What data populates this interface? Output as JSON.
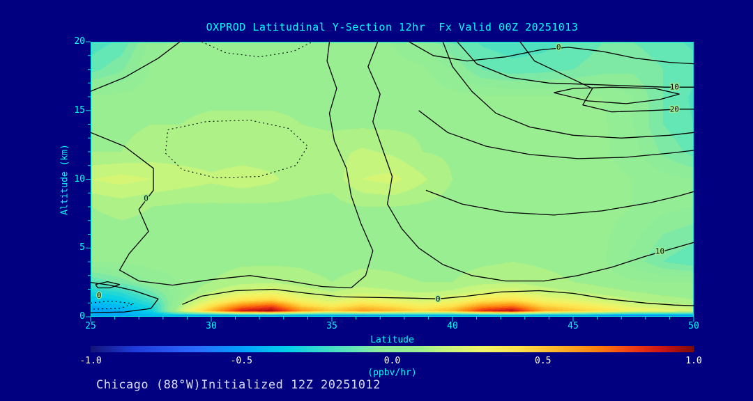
{
  "footer": {
    "text": "Chicago (88°W)Initialized 12Z 20251012"
  },
  "colors": {
    "background": "#000080",
    "axis_text": "#00FFFF",
    "frame": "#00E0E0",
    "contour": "#000000",
    "contour_halo": "#9AEC92",
    "colorbar_tick_text": "#FFFFFF",
    "footer_text": "#DCDCF5"
  },
  "chart_data": {
    "type": "heatmap",
    "title": "OXPROD Latitudinal Y-Section 12hr  Fx Valid 00Z 20251013",
    "xlabel": "Latitude",
    "ylabel": "Altitude (km)",
    "units": "ppbv/hr",
    "units_label": "(ppbv/hr)",
    "x_range": [
      25,
      50
    ],
    "y_range": [
      0,
      20
    ],
    "x_ticks": [
      25,
      30,
      35,
      40,
      45,
      50
    ],
    "y_ticks": [
      0,
      5,
      10,
      15,
      20
    ],
    "x_minor_step": 1,
    "y_minor_step": 1,
    "colorbar_ticks": [
      "-1.0",
      "-0.5",
      "0.0",
      "0.5",
      "1.0"
    ],
    "colorbar_range": [
      -1,
      1
    ],
    "quantize_step": 0.05,
    "colormap": [
      [
        -1.0,
        "#141478"
      ],
      [
        -0.85,
        "#1E3CDC"
      ],
      [
        -0.65,
        "#2B6BFF"
      ],
      [
        -0.5,
        "#00A0FF"
      ],
      [
        -0.35,
        "#00CFE8"
      ],
      [
        -0.22,
        "#3CDCC8"
      ],
      [
        -0.12,
        "#66E6B4"
      ],
      [
        -0.05,
        "#8CEB9B"
      ],
      [
        0.08,
        "#98EE90"
      ],
      [
        0.18,
        "#C8F57D"
      ],
      [
        0.3,
        "#F0F566"
      ],
      [
        0.42,
        "#FFE14B"
      ],
      [
        0.55,
        "#FFB428"
      ],
      [
        0.68,
        "#FF7F0E"
      ],
      [
        0.8,
        "#F03C14"
      ],
      [
        0.9,
        "#C81414"
      ],
      [
        1.0,
        "#7D0A0A"
      ]
    ],
    "x": [
      25,
      26.25,
      27.5,
      28.75,
      30,
      31.25,
      32.5,
      33.75,
      35,
      36.25,
      37.5,
      38.75,
      40,
      41.25,
      42.5,
      43.75,
      45,
      46.25,
      47.5,
      48.75,
      50
    ],
    "y": [
      0,
      0.4,
      0.8,
      1.2,
      1.8,
      2.5,
      4,
      6,
      8,
      10,
      12,
      14,
      16,
      18,
      20
    ],
    "values": [
      [
        -0.5,
        -0.48,
        -0.45,
        -0.55,
        -0.7,
        -0.75,
        -0.75,
        -0.7,
        -0.7,
        -0.75,
        -0.7,
        -0.65,
        -0.7,
        -0.75,
        -0.75,
        -0.7,
        -0.65,
        -0.7,
        -0.75,
        -0.7,
        -0.65
      ],
      [
        -0.5,
        -0.45,
        -0.33,
        0.2,
        0.55,
        0.9,
        0.97,
        0.65,
        0.5,
        0.62,
        0.55,
        0.45,
        0.55,
        0.85,
        0.95,
        0.6,
        0.5,
        0.42,
        0.32,
        0.28,
        0.22
      ],
      [
        -0.45,
        -0.4,
        -0.28,
        0.12,
        0.4,
        0.65,
        0.75,
        0.45,
        0.35,
        0.46,
        0.4,
        0.32,
        0.4,
        0.6,
        0.66,
        0.45,
        0.38,
        0.3,
        0.22,
        0.18,
        0.15
      ],
      [
        -0.4,
        -0.34,
        -0.2,
        0.08,
        0.25,
        0.4,
        0.46,
        0.3,
        0.22,
        0.3,
        0.26,
        0.22,
        0.26,
        0.38,
        0.42,
        0.3,
        0.25,
        0.2,
        0.15,
        0.12,
        0.1
      ],
      [
        -0.3,
        -0.24,
        -0.1,
        0.05,
        0.15,
        0.22,
        0.26,
        0.18,
        0.15,
        0.18,
        0.16,
        0.14,
        0.16,
        0.22,
        0.24,
        0.18,
        0.15,
        0.12,
        0.1,
        0.08,
        0.08
      ],
      [
        -0.15,
        -0.08,
        0.0,
        0.06,
        0.1,
        0.13,
        0.14,
        0.12,
        0.1,
        0.12,
        0.11,
        0.1,
        0.1,
        0.13,
        0.14,
        0.12,
        0.1,
        0.08,
        0.06,
        0.05,
        0.05
      ],
      [
        0.05,
        0.06,
        0.08,
        0.08,
        0.08,
        0.09,
        0.09,
        0.09,
        0.08,
        0.09,
        0.09,
        0.08,
        0.08,
        0.09,
        0.1,
        0.09,
        0.08,
        0.06,
        -0.02,
        -0.1,
        -0.14
      ],
      [
        0.07,
        0.08,
        0.08,
        0.08,
        0.08,
        0.08,
        0.09,
        0.09,
        0.08,
        0.08,
        0.09,
        0.08,
        0.08,
        0.08,
        0.09,
        0.08,
        0.08,
        0.06,
        0.02,
        -0.05,
        -0.08
      ],
      [
        0.1,
        0.12,
        0.1,
        0.09,
        0.09,
        0.09,
        0.09,
        0.09,
        0.08,
        0.1,
        0.1,
        0.09,
        0.08,
        0.08,
        0.08,
        0.08,
        0.08,
        0.07,
        0.05,
        0.02,
        0.0
      ],
      [
        0.2,
        0.22,
        0.2,
        0.18,
        0.16,
        0.18,
        0.16,
        0.12,
        0.12,
        0.2,
        0.22,
        0.16,
        0.1,
        0.09,
        0.09,
        0.08,
        0.08,
        0.07,
        0.05,
        0.02,
        0.0
      ],
      [
        0.1,
        0.1,
        0.12,
        0.12,
        0.12,
        0.12,
        0.12,
        0.13,
        0.13,
        0.16,
        0.14,
        0.1,
        0.09,
        0.09,
        0.09,
        0.09,
        0.08,
        0.06,
        0.02,
        -0.06,
        -0.12
      ],
      [
        0.08,
        0.09,
        0.1,
        0.1,
        0.12,
        0.12,
        0.12,
        0.1,
        0.09,
        0.09,
        0.09,
        0.09,
        0.09,
        0.09,
        0.08,
        0.08,
        0.07,
        0.06,
        0.0,
        -0.1,
        -0.15
      ],
      [
        0.06,
        0.07,
        0.08,
        0.08,
        0.08,
        0.08,
        0.08,
        0.08,
        0.08,
        0.08,
        0.08,
        0.08,
        0.07,
        0.06,
        0.06,
        0.06,
        0.06,
        0.05,
        0.0,
        -0.1,
        -0.16
      ],
      [
        -0.12,
        -0.06,
        0.06,
        0.08,
        0.08,
        0.08,
        0.08,
        0.08,
        0.08,
        0.08,
        0.07,
        0.06,
        0.0,
        -0.1,
        -0.13,
        -0.12,
        -0.1,
        -0.07,
        -0.06,
        -0.1,
        -0.13
      ],
      [
        -0.18,
        -0.14,
        0.02,
        0.07,
        0.08,
        0.08,
        0.08,
        0.08,
        0.08,
        0.07,
        0.05,
        0.0,
        -0.1,
        -0.16,
        -0.18,
        -0.17,
        -0.14,
        -0.1,
        -0.1,
        -0.13,
        -0.16
      ]
    ],
    "contours": [
      {
        "pts": [
          [
            28.7,
            20
          ],
          [
            27.8,
            18.8
          ],
          [
            26.4,
            17.4
          ],
          [
            25,
            16.4
          ]
        ]
      },
      {
        "pts": [
          [
            25,
            13.4
          ],
          [
            26.4,
            12.4
          ],
          [
            27.6,
            10.8
          ],
          [
            27.6,
            9.2
          ],
          [
            27.0,
            7.8
          ],
          [
            27.4,
            6.2
          ],
          [
            26.6,
            4.6
          ],
          [
            26.2,
            3.4
          ],
          [
            27.0,
            2.6
          ],
          [
            28.4,
            2.3
          ],
          [
            30.0,
            2.7
          ],
          [
            31.6,
            3.0
          ],
          [
            33.2,
            2.6
          ],
          [
            34.6,
            2.2
          ],
          [
            35.8,
            2.1
          ],
          [
            36.4,
            3.0
          ],
          [
            36.7,
            4.8
          ],
          [
            36.2,
            6.8
          ],
          [
            35.8,
            8.8
          ],
          [
            35.6,
            10.8
          ],
          [
            35.1,
            12.8
          ],
          [
            34.9,
            14.8
          ],
          [
            35.2,
            16.6
          ],
          [
            34.8,
            18.6
          ],
          [
            34.9,
            20
          ]
        ],
        "label": "0",
        "label_at": [
          27.3,
          8.6
        ]
      },
      {
        "pts": [
          [
            28.8,
            0.9
          ],
          [
            29.6,
            1.5
          ],
          [
            31,
            1.9
          ],
          [
            32.6,
            2.0
          ],
          [
            34,
            1.7
          ],
          [
            35.4,
            1.45
          ],
          [
            37,
            1.4
          ],
          [
            38.4,
            1.35
          ],
          [
            39.4,
            1.3
          ],
          [
            40.6,
            1.5
          ],
          [
            42,
            1.8
          ],
          [
            43.6,
            1.9
          ],
          [
            45,
            1.7
          ],
          [
            46.4,
            1.3
          ],
          [
            48,
            1.0
          ],
          [
            49.2,
            0.85
          ],
          [
            50,
            0.8
          ]
        ],
        "label": "0",
        "label_at": [
          39.4,
          1.3
        ]
      },
      {
        "pts": [
          [
            25,
            2.5
          ],
          [
            25.8,
            2.3
          ],
          [
            26.8,
            1.9
          ],
          [
            27.8,
            1.3
          ],
          [
            27.5,
            0.6
          ],
          [
            26.4,
            0.35
          ],
          [
            25,
            0.3
          ]
        ],
        "label": "0",
        "label_at": [
          25.35,
          1.55
        ]
      },
      {
        "pts": [
          [
            36.9,
            20
          ],
          [
            36.5,
            18.2
          ],
          [
            37.0,
            16.2
          ],
          [
            36.7,
            14.2
          ],
          [
            37.1,
            12.2
          ],
          [
            37.5,
            10.2
          ],
          [
            37.3,
            8.2
          ],
          [
            37.9,
            6.4
          ],
          [
            38.6,
            5.0
          ],
          [
            39.6,
            3.8
          ],
          [
            40.8,
            3.0
          ],
          [
            42.2,
            2.6
          ],
          [
            43.8,
            2.6
          ],
          [
            45.2,
            3.0
          ],
          [
            46.6,
            3.6
          ],
          [
            48.0,
            4.4
          ],
          [
            49.2,
            5.0
          ],
          [
            50,
            5.4
          ]
        ],
        "label": "10",
        "label_at": [
          48.6,
          4.75
        ]
      },
      {
        "pts": [
          [
            38.2,
            20
          ],
          [
            39.2,
            19.0
          ],
          [
            40.6,
            18.6
          ],
          [
            42.2,
            18.9
          ],
          [
            43.6,
            19.4
          ],
          [
            44.8,
            19.6
          ],
          [
            46.2,
            19.3
          ],
          [
            47.6,
            18.8
          ],
          [
            49,
            18.5
          ],
          [
            50,
            18.4
          ]
        ],
        "label": "0",
        "label_at": [
          44.4,
          19.6
        ]
      },
      {
        "pts": [
          [
            40.2,
            20
          ],
          [
            41.0,
            18.4
          ],
          [
            42.4,
            17.4
          ],
          [
            44,
            17.0
          ],
          [
            45.6,
            16.9
          ],
          [
            47.2,
            16.8
          ],
          [
            48.8,
            16.7
          ],
          [
            50,
            16.7
          ]
        ],
        "label": "10",
        "label_at": [
          49.2,
          16.7
        ]
      },
      {
        "pts": [
          [
            42.8,
            20
          ],
          [
            43.4,
            18.6
          ],
          [
            44.6,
            17.6
          ],
          [
            45.8,
            16.6
          ],
          [
            45.4,
            15.4
          ],
          [
            46.6,
            14.9
          ],
          [
            48.2,
            15.0
          ],
          [
            49.4,
            15.1
          ],
          [
            50,
            15.1
          ]
        ],
        "label": "20",
        "label_at": [
          49.2,
          15.1
        ]
      },
      {
        "pts": [
          [
            44.2,
            16.3
          ],
          [
            45.6,
            15.7
          ],
          [
            47.2,
            15.5
          ],
          [
            48.6,
            15.8
          ],
          [
            49.4,
            16.2
          ],
          [
            48.4,
            16.6
          ],
          [
            46.6,
            16.7
          ],
          [
            45.0,
            16.6
          ],
          [
            44.2,
            16.3
          ]
        ]
      },
      {
        "pts": [
          [
            38.6,
            15.0
          ],
          [
            39.8,
            13.4
          ],
          [
            41.4,
            12.4
          ],
          [
            43.2,
            11.8
          ],
          [
            45.2,
            11.5
          ],
          [
            47.2,
            11.6
          ],
          [
            49,
            11.9
          ],
          [
            50,
            12.1
          ]
        ]
      },
      {
        "pts": [
          [
            38.9,
            9.2
          ],
          [
            40.4,
            8.2
          ],
          [
            42.2,
            7.6
          ],
          [
            44.2,
            7.4
          ],
          [
            46.2,
            7.7
          ],
          [
            48.2,
            8.3
          ],
          [
            49.4,
            8.8
          ],
          [
            50,
            9.1
          ]
        ]
      },
      {
        "pts": [
          [
            39.6,
            20
          ],
          [
            40.0,
            18.2
          ],
          [
            40.8,
            16.4
          ],
          [
            41.8,
            14.8
          ],
          [
            43.2,
            13.8
          ],
          [
            45,
            13.2
          ],
          [
            47,
            13.0
          ],
          [
            49,
            13.2
          ],
          [
            50,
            13.4
          ]
        ]
      },
      {
        "pts": [
          [
            28.2,
            13.6
          ],
          [
            29.8,
            14.2
          ],
          [
            31.6,
            14.3
          ],
          [
            33.2,
            13.7
          ],
          [
            34.0,
            12.4
          ],
          [
            33.5,
            11.0
          ],
          [
            32.0,
            10.2
          ],
          [
            30.2,
            10.1
          ],
          [
            28.8,
            10.7
          ],
          [
            28.1,
            11.9
          ],
          [
            28.2,
            13.6
          ]
        ],
        "dotted": true
      },
      {
        "pts": [
          [
            29.6,
            20
          ],
          [
            30.6,
            19.2
          ],
          [
            32.0,
            18.9
          ],
          [
            33.4,
            19.3
          ],
          [
            34.2,
            20
          ]
        ],
        "dotted": true
      },
      {
        "pts": [
          [
            25,
            1.0
          ],
          [
            25.8,
            1.15
          ],
          [
            26.8,
            0.95
          ],
          [
            26.2,
            0.6
          ],
          [
            25,
            0.55
          ]
        ],
        "dotted": true
      },
      {
        "pts": [
          [
            25.2,
            2.35
          ],
          [
            25.7,
            2.55
          ],
          [
            26.2,
            2.35
          ],
          [
            25.8,
            2.1
          ],
          [
            25.3,
            2.1
          ],
          [
            25.2,
            2.35
          ]
        ]
      }
    ]
  }
}
